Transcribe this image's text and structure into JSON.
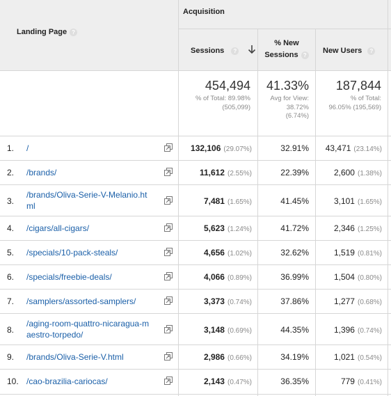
{
  "header": {
    "group_label": "Acquisition",
    "landing_page": "Landing Page",
    "sessions": "Sessions",
    "new_sessions_line1": "% New",
    "new_sessions_line2": "Sessions",
    "new_users": "New Users",
    "help_glyph": "?"
  },
  "totals": {
    "sessions": "454,494",
    "sessions_sub1": "% of Total: 89.98%",
    "sessions_sub2": "(505,099)",
    "new_sessions": "41.33%",
    "new_sessions_sub1": "Avg for View:",
    "new_sessions_sub2": "38.72%",
    "new_sessions_sub3": "(6.74%)",
    "new_users": "187,844",
    "new_users_sub1": "% of Total:",
    "new_users_sub2": "96.05% (195,569)"
  },
  "rows": [
    {
      "rank": "1.",
      "page_line1": "/",
      "page_line2": "",
      "sessions": "132,106",
      "sessions_pct": "(29.07%)",
      "new_sessions": "32.91%",
      "new_users": "43,471",
      "new_users_pct": "(23.14%)"
    },
    {
      "rank": "2.",
      "page_line1": "/brands/",
      "page_line2": "",
      "sessions": "11,612",
      "sessions_pct": "(2.55%)",
      "new_sessions": "22.39%",
      "new_users": "2,600",
      "new_users_pct": "(1.38%)"
    },
    {
      "rank": "3.",
      "page_line1": "/brands/Oliva-Serie-V-Melanio.ht",
      "page_line2": "ml",
      "sessions": "7,481",
      "sessions_pct": "(1.65%)",
      "new_sessions": "41.45%",
      "new_users": "3,101",
      "new_users_pct": "(1.65%)"
    },
    {
      "rank": "4.",
      "page_line1": "/cigars/all-cigars/",
      "page_line2": "",
      "sessions": "5,623",
      "sessions_pct": "(1.24%)",
      "new_sessions": "41.72%",
      "new_users": "2,346",
      "new_users_pct": "(1.25%)"
    },
    {
      "rank": "5.",
      "page_line1": "/specials/10-pack-steals/",
      "page_line2": "",
      "sessions": "4,656",
      "sessions_pct": "(1.02%)",
      "new_sessions": "32.62%",
      "new_users": "1,519",
      "new_users_pct": "(0.81%)"
    },
    {
      "rank": "6.",
      "page_line1": "/specials/freebie-deals/",
      "page_line2": "",
      "sessions": "4,066",
      "sessions_pct": "(0.89%)",
      "new_sessions": "36.99%",
      "new_users": "1,504",
      "new_users_pct": "(0.80%)"
    },
    {
      "rank": "7.",
      "page_line1": "/samplers/assorted-samplers/",
      "page_line2": "",
      "sessions": "3,373",
      "sessions_pct": "(0.74%)",
      "new_sessions": "37.86%",
      "new_users": "1,277",
      "new_users_pct": "(0.68%)"
    },
    {
      "rank": "8.",
      "page_line1": "/aging-room-quattro-nicaragua-m",
      "page_line2": "aestro-torpedo/",
      "sessions": "3,148",
      "sessions_pct": "(0.69%)",
      "new_sessions": "44.35%",
      "new_users": "1,396",
      "new_users_pct": "(0.74%)"
    },
    {
      "rank": "9.",
      "page_line1": "/brands/Oliva-Serie-V.html",
      "page_line2": "",
      "sessions": "2,986",
      "sessions_pct": "(0.66%)",
      "new_sessions": "34.19%",
      "new_users": "1,021",
      "new_users_pct": "(0.54%)"
    },
    {
      "rank": "10.",
      "page_line1": "/cao-brazilia-cariocas/",
      "page_line2": "",
      "sessions": "2,143",
      "sessions_pct": "(0.47%)",
      "new_sessions": "36.35%",
      "new_users": "779",
      "new_users_pct": "(0.41%)"
    }
  ],
  "icons": {
    "sort": "arrow-down-icon",
    "help": "help-circle-icon",
    "external": "open-in-new-window-icon"
  }
}
